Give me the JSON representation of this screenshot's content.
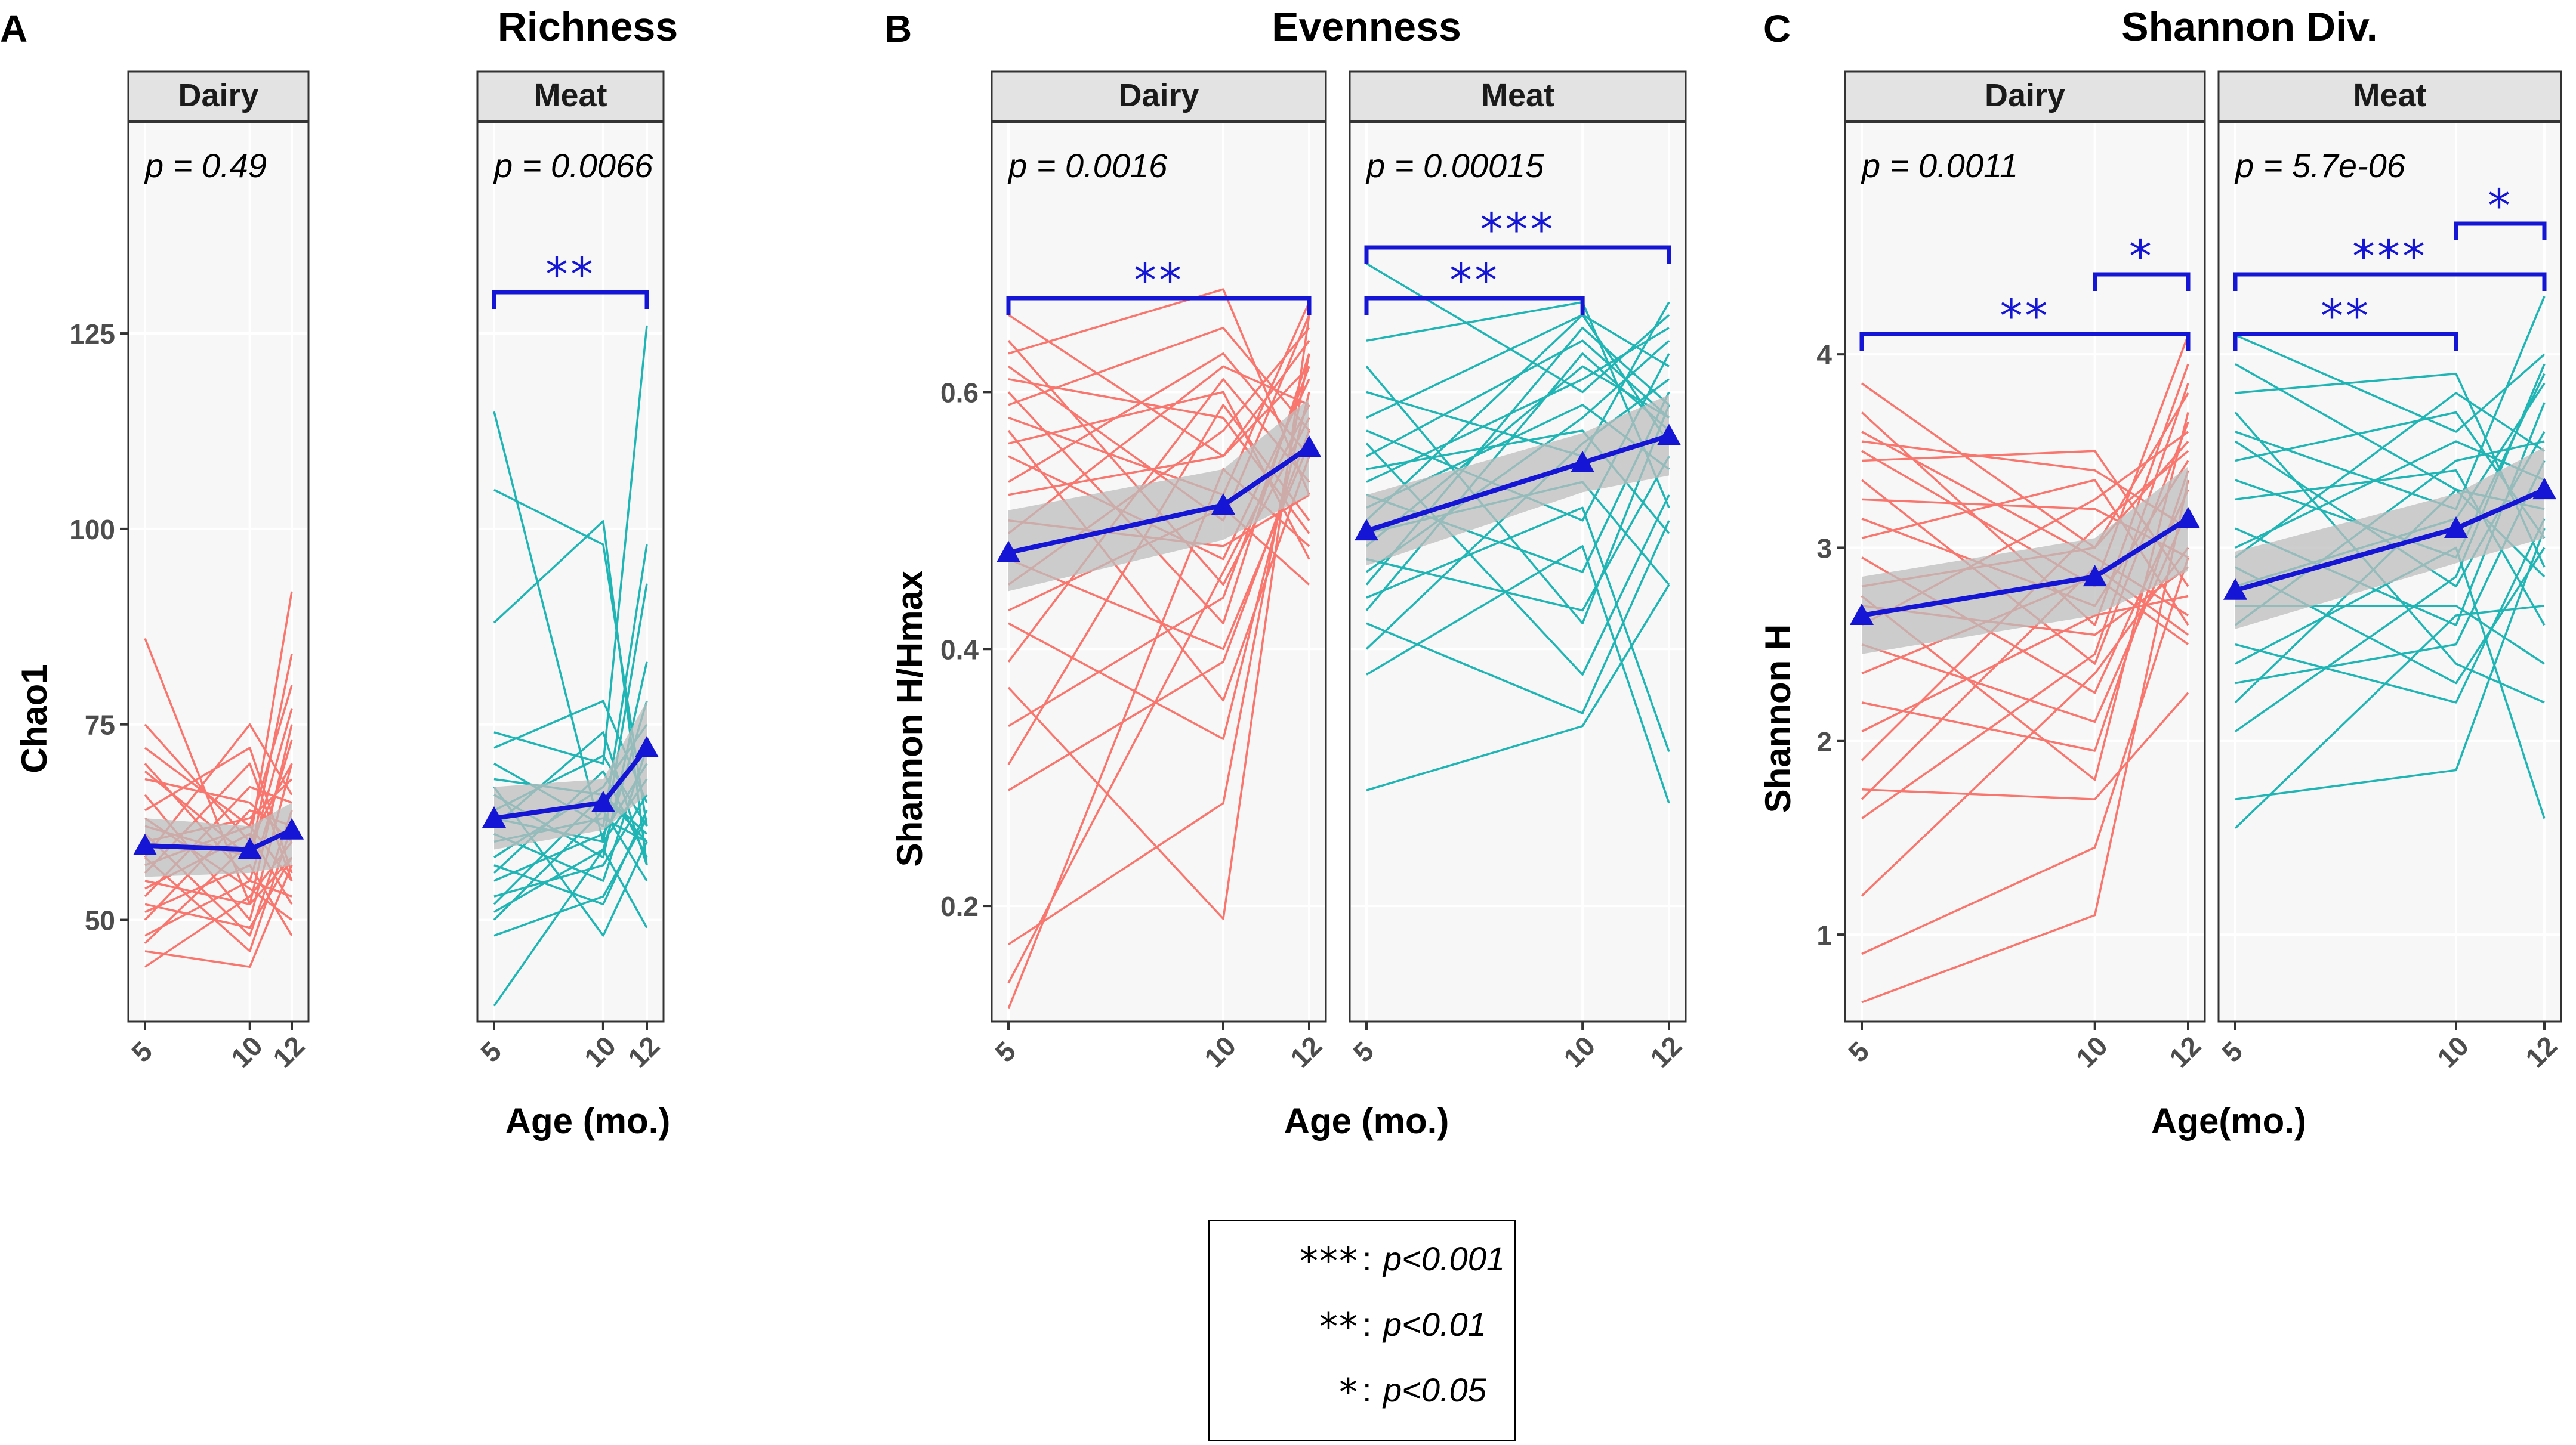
{
  "colors": {
    "dairy": "#F8766D",
    "meat": "#1FB5B5",
    "mean": "#1515D6",
    "band": "#BDBDBD",
    "strip": "#E3E3E3",
    "panel_bg": "#F7F7F7",
    "grid": "#FFFFFF"
  },
  "legend": {
    "rows": [
      {
        "stars": "***",
        "colon": ":",
        "label": "p<0.001"
      },
      {
        "stars": "**",
        "colon": ":",
        "label": "p<0.01"
      },
      {
        "stars": "*",
        "colon": ":",
        "label": "p<0.05"
      }
    ]
  },
  "chart_data": [
    {
      "type": "line",
      "panel_letter": "A",
      "title": "Richness",
      "ylabel": "Chao1",
      "xlabel": "Age (mo.)",
      "x_ticks": [
        5,
        10,
        12
      ],
      "y_ticks": [
        50,
        75,
        100,
        125
      ],
      "ylim": [
        37,
        152
      ],
      "facets": [
        {
          "name": "Dairy",
          "p_text": "p = 0.49",
          "color_key": "dairy",
          "mean": {
            "x": [
              5,
              10,
              12
            ],
            "y": [
              59.5,
              59.0,
              61.5
            ]
          },
          "band": {
            "upper": [
              63,
              62,
              65
            ],
            "lower": [
              55.5,
              56,
              57
            ]
          },
          "lines": [
            [
              86,
              52,
              58
            ],
            [
              75,
              60,
              92
            ],
            [
              72,
              62,
              80
            ],
            [
              70,
              55,
              73
            ],
            [
              68,
              65,
              60
            ],
            [
              66,
              50,
              70
            ],
            [
              64,
              72,
              56
            ],
            [
              62,
              58,
              84
            ],
            [
              60,
              63,
              68
            ],
            [
              58,
              46,
              62
            ],
            [
              56,
              70,
              55
            ],
            [
              55,
              52,
              75
            ],
            [
              54,
              61,
              52
            ],
            [
              53,
              67,
              65
            ],
            [
              52,
              49,
              58
            ],
            [
              51,
              57,
              48
            ],
            [
              50,
              64,
              62
            ],
            [
              48,
              55,
              53
            ],
            [
              47,
              60,
              70
            ],
            [
              46,
              44,
              57
            ],
            [
              44,
              53,
              60
            ],
            [
              58,
              75,
              66
            ],
            [
              63,
              54,
              50
            ],
            [
              69,
              58,
              77
            ],
            [
              57,
              62,
              55
            ],
            [
              61,
              48,
              64
            ]
          ],
          "brackets": []
        },
        {
          "name": "Meat",
          "p_text": "p = 0.0066",
          "color_key": "meat",
          "mean": {
            "x": [
              5,
              10,
              12
            ],
            "y": [
              63,
              65,
              72
            ]
          },
          "band": {
            "upper": [
              67,
              68,
              78
            ],
            "lower": [
              59,
              61.5,
              66
            ]
          },
          "lines": [
            [
              115,
              60,
              93
            ],
            [
              105,
              98,
              62
            ],
            [
              88,
              101,
              57
            ],
            [
              74,
              70,
              126
            ],
            [
              72,
              78,
              65
            ],
            [
              70,
              62,
              98
            ],
            [
              68,
              66,
              60
            ],
            [
              66,
              58,
              83
            ],
            [
              64,
              71,
              62
            ],
            [
              63,
              60,
              68
            ],
            [
              62,
              74,
              57
            ],
            [
              61,
              55,
              72
            ],
            [
              60,
              63,
              60
            ],
            [
              58,
              67,
              75
            ],
            [
              57,
              52,
              64
            ],
            [
              56,
              69,
              58
            ],
            [
              55,
              61,
              70
            ],
            [
              53,
              57,
              66
            ],
            [
              52,
              66,
              61
            ],
            [
              51,
              59,
              78
            ],
            [
              50,
              64,
              55
            ],
            [
              48,
              53,
              63
            ],
            [
              39,
              59,
              49
            ],
            [
              67,
              48,
              60
            ]
          ],
          "brackets": [
            {
              "from": 5,
              "to": 12,
              "stars": "**",
              "level": 0
            }
          ]
        }
      ]
    },
    {
      "type": "line",
      "panel_letter": "B",
      "title": "Evenness",
      "ylabel": "Shannon H/Hmax",
      "xlabel": "Age (mo.)",
      "x_ticks": [
        5,
        10,
        12
      ],
      "y_ticks": [
        0.2,
        0.4,
        0.6
      ],
      "ylim": [
        0.11,
        0.81
      ],
      "facets": [
        {
          "name": "Dairy",
          "p_text": "p = 0.0016",
          "color_key": "dairy",
          "mean": {
            "x": [
              5,
              10,
              12
            ],
            "y": [
              0.475,
              0.512,
              0.557
            ]
          },
          "band": {
            "upper": [
              0.508,
              0.54,
              0.595
            ],
            "lower": [
              0.445,
              0.485,
              0.52
            ]
          },
          "lines": [
            [
              0.66,
              0.55,
              0.62
            ],
            [
              0.64,
              0.45,
              0.58
            ],
            [
              0.63,
              0.68,
              0.52
            ],
            [
              0.62,
              0.5,
              0.66
            ],
            [
              0.61,
              0.58,
              0.49
            ],
            [
              0.6,
              0.42,
              0.63
            ],
            [
              0.59,
              0.65,
              0.57
            ],
            [
              0.58,
              0.52,
              0.67
            ],
            [
              0.56,
              0.6,
              0.47
            ],
            [
              0.55,
              0.47,
              0.61
            ],
            [
              0.53,
              0.63,
              0.55
            ],
            [
              0.52,
              0.55,
              0.64
            ],
            [
              0.5,
              0.48,
              0.52
            ],
            [
              0.49,
              0.62,
              0.59
            ],
            [
              0.47,
              0.4,
              0.56
            ],
            [
              0.45,
              0.57,
              0.65
            ],
            [
              0.43,
              0.51,
              0.45
            ],
            [
              0.42,
              0.33,
              0.6
            ],
            [
              0.39,
              0.61,
              0.53
            ],
            [
              0.34,
              0.44,
              0.62
            ],
            [
              0.31,
              0.59,
              0.5
            ],
            [
              0.29,
              0.39,
              0.57
            ],
            [
              0.17,
              0.28,
              0.63
            ],
            [
              0.14,
              0.46,
              0.59
            ],
            [
              0.12,
              0.54,
              0.48
            ],
            [
              0.37,
              0.19,
              0.66
            ],
            [
              0.57,
              0.36,
              0.55
            ]
          ],
          "brackets": [
            {
              "from": 5,
              "to": 12,
              "stars": "**",
              "level": 0
            }
          ]
        },
        {
          "name": "Meat",
          "p_text": "p = 0.00015",
          "color_key": "meat",
          "mean": {
            "x": [
              5,
              10,
              12
            ],
            "y": [
              0.492,
              0.545,
              0.566
            ]
          },
          "band": {
            "upper": [
              0.52,
              0.568,
              0.598
            ],
            "lower": [
              0.465,
              0.522,
              0.535
            ]
          },
          "lines": [
            [
              0.7,
              0.6,
              0.66
            ],
            [
              0.64,
              0.67,
              0.51
            ],
            [
              0.62,
              0.42,
              0.59
            ],
            [
              0.6,
              0.55,
              0.67
            ],
            [
              0.58,
              0.66,
              0.56
            ],
            [
              0.57,
              0.5,
              0.63
            ],
            [
              0.55,
              0.64,
              0.58
            ],
            [
              0.54,
              0.57,
              0.49
            ],
            [
              0.53,
              0.61,
              0.65
            ],
            [
              0.52,
              0.46,
              0.6
            ],
            [
              0.51,
              0.59,
              0.54
            ],
            [
              0.5,
              0.66,
              0.62
            ],
            [
              0.49,
              0.53,
              0.45
            ],
            [
              0.48,
              0.62,
              0.58
            ],
            [
              0.47,
              0.43,
              0.55
            ],
            [
              0.46,
              0.58,
              0.64
            ],
            [
              0.44,
              0.51,
              0.32
            ],
            [
              0.43,
              0.63,
              0.57
            ],
            [
              0.42,
              0.35,
              0.5
            ],
            [
              0.4,
              0.56,
              0.61
            ],
            [
              0.38,
              0.48,
              0.28
            ],
            [
              0.29,
              0.34,
              0.45
            ],
            [
              0.45,
              0.65,
              0.59
            ],
            [
              0.56,
              0.38,
              0.52
            ]
          ],
          "brackets": [
            {
              "from": 5,
              "to": 10,
              "stars": "**",
              "level": 0
            },
            {
              "from": 5,
              "to": 12,
              "stars": "***",
              "level": 1
            }
          ]
        }
      ]
    },
    {
      "type": "line",
      "panel_letter": "C",
      "title": "Shannon Div.",
      "ylabel": "Shannon H",
      "xlabel": "Age(mo.)",
      "x_ticks": [
        5,
        10,
        12
      ],
      "y_ticks": [
        1,
        2,
        3,
        4
      ],
      "ylim": [
        0.55,
        5.2
      ],
      "facets": [
        {
          "name": "Dairy",
          "p_text": "p = 0.0011",
          "color_key": "dairy",
          "mean": {
            "x": [
              5,
              10,
              12
            ],
            "y": [
              2.65,
              2.85,
              3.15
            ]
          },
          "band": {
            "upper": [
              2.85,
              3.05,
              3.42
            ],
            "lower": [
              2.45,
              2.65,
              2.88
            ]
          },
          "lines": [
            [
              3.85,
              3.0,
              3.55
            ],
            [
              3.7,
              2.6,
              3.95
            ],
            [
              3.55,
              3.4,
              3.1
            ],
            [
              3.5,
              2.8,
              4.1
            ],
            [
              3.45,
              3.5,
              2.8
            ],
            [
              3.35,
              2.4,
              3.65
            ],
            [
              3.25,
              3.2,
              2.95
            ],
            [
              3.15,
              2.7,
              3.45
            ],
            [
              3.05,
              3.35,
              2.6
            ],
            [
              2.95,
              2.25,
              3.3
            ],
            [
              2.8,
              3.0,
              3.8
            ],
            [
              2.7,
              2.55,
              2.9
            ],
            [
              2.6,
              3.25,
              3.6
            ],
            [
              2.5,
              2.1,
              3.2
            ],
            [
              2.35,
              2.85,
              2.5
            ],
            [
              2.2,
              1.95,
              3.4
            ],
            [
              2.05,
              2.65,
              2.75
            ],
            [
              1.9,
              3.1,
              3.5
            ],
            [
              1.75,
              1.7,
              2.25
            ],
            [
              1.6,
              2.45,
              3.85
            ],
            [
              0.9,
              1.45,
              2.95
            ],
            [
              0.65,
              1.1,
              3.35
            ],
            [
              1.7,
              2.9,
              2.55
            ],
            [
              2.75,
              1.8,
              3.7
            ],
            [
              3.6,
              2.95,
              2.65
            ],
            [
              1.2,
              2.35,
              3.0
            ]
          ],
          "brackets": [
            {
              "from": 10,
              "to": 12,
              "stars": "*",
              "level": 1
            },
            {
              "from": 5,
              "to": 12,
              "stars": "**",
              "level": 0
            }
          ]
        },
        {
          "name": "Meat",
          "p_text": "p = 5.7e-06",
          "color_key": "meat",
          "mean": {
            "x": [
              5,
              10,
              12
            ],
            "y": [
              2.78,
              3.1,
              3.3
            ]
          },
          "band": {
            "upper": [
              2.98,
              3.28,
              3.52
            ],
            "lower": [
              2.58,
              2.92,
              3.05
            ]
          },
          "lines": [
            [
              4.1,
              3.6,
              4.0
            ],
            [
              3.95,
              3.3,
              3.2
            ],
            [
              3.8,
              3.9,
              2.9
            ],
            [
              3.6,
              3.2,
              4.3
            ],
            [
              3.55,
              2.8,
              3.6
            ],
            [
              3.45,
              3.7,
              3.05
            ],
            [
              3.35,
              2.95,
              3.9
            ],
            [
              3.25,
              3.4,
              2.6
            ],
            [
              3.1,
              2.6,
              3.75
            ],
            [
              3.0,
              3.55,
              3.35
            ],
            [
              2.9,
              2.3,
              3.0
            ],
            [
              2.8,
              3.15,
              3.85
            ],
            [
              2.7,
              2.7,
              2.4
            ],
            [
              2.6,
              3.45,
              3.55
            ],
            [
              2.5,
              2.2,
              3.15
            ],
            [
              2.4,
              3.0,
              1.6
            ],
            [
              2.3,
              2.5,
              3.45
            ],
            [
              2.2,
              3.3,
              2.85
            ],
            [
              2.05,
              2.85,
              3.95
            ],
            [
              1.7,
              1.85,
              3.1
            ],
            [
              1.55,
              2.65,
              2.7
            ],
            [
              2.95,
              3.8,
              3.5
            ],
            [
              3.7,
              2.4,
              2.2
            ]
          ],
          "brackets": [
            {
              "from": 5,
              "to": 10,
              "stars": "**",
              "level": 0
            },
            {
              "from": 5,
              "to": 12,
              "stars": "***",
              "level": 1
            },
            {
              "from": 10,
              "to": 12,
              "stars": "*",
              "level": 2
            }
          ]
        }
      ]
    }
  ]
}
